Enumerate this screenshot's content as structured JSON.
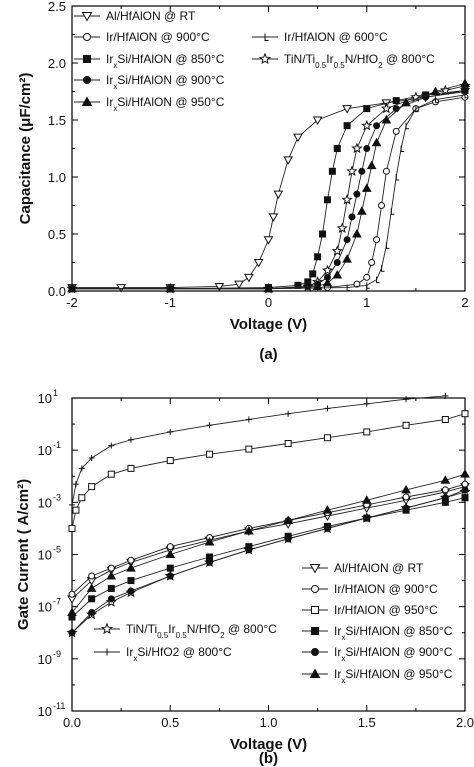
{
  "chart_data": [
    {
      "type": "line",
      "panel_label": "(a)",
      "xlabel": "Voltage (V)",
      "ylabel": "Capacitance (μF/cm²)",
      "xlim": [
        -2,
        2
      ],
      "ylim": [
        0,
        2.5
      ],
      "xticks": [
        -2,
        -1,
        0,
        1,
        2
      ],
      "yticks": [
        0.0,
        0.5,
        1.0,
        1.5,
        2.0,
        2.5
      ],
      "xtick_labels": [
        "-2",
        "-1",
        "0",
        "1",
        "2"
      ],
      "ytick_labels": [
        "0.0",
        "0.5",
        "1.0",
        "1.5",
        "2.0",
        "2.5"
      ],
      "grid": false,
      "legend_position": "top-left",
      "series": [
        {
          "name": "Al/HfAlON @ RT",
          "marker": "tri-down-open",
          "x": [
            -2.0,
            -1.5,
            -1.0,
            -0.5,
            -0.3,
            -0.2,
            -0.1,
            0.0,
            0.05,
            0.1,
            0.2,
            0.3,
            0.5,
            0.8,
            1.2,
            1.6,
            2.0
          ],
          "y": [
            0.03,
            0.03,
            0.03,
            0.04,
            0.06,
            0.12,
            0.25,
            0.45,
            0.65,
            0.85,
            1.15,
            1.35,
            1.5,
            1.6,
            1.65,
            1.7,
            1.75
          ]
        },
        {
          "name": "Ir/HfAlON @ 900°C",
          "marker": "circle-open",
          "x": [
            -2.0,
            -1.0,
            0.0,
            0.6,
            0.9,
            1.0,
            1.05,
            1.1,
            1.15,
            1.2,
            1.3,
            1.5,
            1.7,
            2.0
          ],
          "y": [
            0.02,
            0.02,
            0.02,
            0.03,
            0.06,
            0.12,
            0.25,
            0.45,
            0.75,
            1.05,
            1.4,
            1.6,
            1.66,
            1.7
          ]
        },
        {
          "name": "Ir/HfAlON @ 600°C",
          "marker": "tick-open",
          "x": [
            -2.0,
            -1.0,
            0.0,
            0.8,
            1.0,
            1.1,
            1.15,
            1.2,
            1.25,
            1.3,
            1.35,
            1.4,
            1.5,
            1.7,
            2.0
          ],
          "y": [
            0.02,
            0.02,
            0.02,
            0.03,
            0.05,
            0.1,
            0.2,
            0.4,
            0.7,
            1.0,
            1.25,
            1.45,
            1.6,
            1.68,
            1.72
          ]
        },
        {
          "name": "IrxSi/HfAlON @ 850°C",
          "marker": "square-filled",
          "x": [
            -2.0,
            -1.0,
            0.0,
            0.3,
            0.4,
            0.45,
            0.5,
            0.55,
            0.6,
            0.65,
            0.7,
            0.8,
            1.0,
            1.3,
            1.6,
            2.0
          ],
          "y": [
            0.02,
            0.02,
            0.03,
            0.05,
            0.08,
            0.15,
            0.3,
            0.5,
            0.8,
            1.05,
            1.25,
            1.45,
            1.6,
            1.67,
            1.72,
            1.76
          ]
        },
        {
          "name": "TiN/Ti0.5Ir0.5N/HfO2 @ 800°C",
          "marker": "star-open",
          "x": [
            -2.0,
            -1.0,
            0.0,
            0.4,
            0.5,
            0.6,
            0.7,
            0.75,
            0.8,
            0.85,
            0.9,
            1.0,
            1.2,
            1.5,
            1.8,
            2.0
          ],
          "y": [
            0.02,
            0.02,
            0.02,
            0.04,
            0.08,
            0.18,
            0.35,
            0.55,
            0.8,
            1.05,
            1.25,
            1.45,
            1.6,
            1.7,
            1.76,
            1.8
          ]
        },
        {
          "name": "IrxSi/HfAlON @ 900°C",
          "marker": "circle-filled",
          "x": [
            -2.0,
            -1.0,
            0.0,
            0.4,
            0.5,
            0.6,
            0.7,
            0.8,
            0.85,
            0.9,
            0.95,
            1.0,
            1.1,
            1.3,
            1.6,
            2.0
          ],
          "y": [
            0.02,
            0.02,
            0.02,
            0.04,
            0.06,
            0.12,
            0.25,
            0.45,
            0.65,
            0.85,
            1.05,
            1.25,
            1.45,
            1.6,
            1.7,
            1.76
          ]
        },
        {
          "name": "IrxSi/HfAlON @ 950°C",
          "marker": "tri-up-filled",
          "x": [
            -2.0,
            -1.0,
            0.0,
            0.5,
            0.6,
            0.7,
            0.8,
            0.9,
            0.95,
            1.0,
            1.05,
            1.1,
            1.2,
            1.4,
            1.7,
            2.0
          ],
          "y": [
            0.02,
            0.02,
            0.02,
            0.04,
            0.07,
            0.14,
            0.28,
            0.5,
            0.7,
            0.9,
            1.1,
            1.3,
            1.5,
            1.65,
            1.75,
            1.82
          ]
        }
      ]
    },
    {
      "type": "line",
      "panel_label": "(b)",
      "xlabel": "Voltage (V)",
      "ylabel": "Gate Current ( A/cm²)",
      "yscale": "log",
      "xlim": [
        0.0,
        2.0
      ],
      "ylim": [
        1e-11,
        10
      ],
      "xticks": [
        0.0,
        0.5,
        1.0,
        1.5,
        2.0
      ],
      "xtick_labels": [
        "0.0",
        "0.5",
        "1.0",
        "1.5",
        "2.0"
      ],
      "ytick_exponents": [
        1,
        -1,
        -3,
        -5,
        -7,
        -9,
        -11
      ],
      "grid": false,
      "legend_position": "bottom-right",
      "series": [
        {
          "name": "Al/HfAlON @ RT",
          "marker": "tri-down-open",
          "x": [
            0.0,
            0.1,
            0.2,
            0.3,
            0.5,
            0.7,
            0.9,
            1.1,
            1.3,
            1.5,
            1.7,
            1.9,
            2.0
          ],
          "y": [
            2e-07,
            1e-06,
            2.5e-06,
            5e-06,
            1.5e-05,
            3.5e-05,
            8e-05,
            0.00015,
            0.0003,
            0.0006,
            0.0012,
            0.0025,
            0.004
          ]
        },
        {
          "name": "Ir/HfAlON @ 900°C",
          "marker": "circle-open",
          "x": [
            0.0,
            0.1,
            0.2,
            0.3,
            0.5,
            0.7,
            0.9,
            1.1,
            1.3,
            1.5,
            1.7,
            1.9,
            2.0
          ],
          "y": [
            3e-07,
            1.5e-06,
            3e-06,
            6e-06,
            2e-05,
            4.5e-05,
            0.0001,
            0.0002,
            0.0004,
            0.0008,
            0.0016,
            0.003,
            0.005
          ]
        },
        {
          "name": "Ir/HfAlON @ 950°C",
          "marker": "square-open",
          "x": [
            0.0,
            0.02,
            0.05,
            0.1,
            0.2,
            0.3,
            0.5,
            0.7,
            0.9,
            1.1,
            1.3,
            1.5,
            1.7,
            1.9,
            2.0
          ],
          "y": [
            0.0001,
            0.0005,
            0.0015,
            0.004,
            0.012,
            0.02,
            0.04,
            0.07,
            0.11,
            0.18,
            0.3,
            0.5,
            0.9,
            1.5,
            2.5
          ]
        },
        {
          "name": "TiN/Ti0.5Ir0.5N/HfO2 @ 800°C",
          "marker": "star-open",
          "x": [
            0.0,
            0.1,
            0.2,
            0.3,
            0.5,
            0.7,
            0.9,
            1.1,
            1.3,
            1.5,
            1.7,
            1.9,
            2.0
          ],
          "y": [
            1e-08,
            5e-08,
            1.5e-07,
            3.5e-07,
            1.5e-06,
            5e-06,
            1.5e-05,
            4e-05,
            0.0001,
            0.00025,
            0.0006,
            0.0015,
            0.0025
          ]
        },
        {
          "name": "IrxSi/HfAlON @ 850°C",
          "marker": "square-filled",
          "x": [
            0.0,
            0.1,
            0.2,
            0.3,
            0.5,
            0.7,
            0.9,
            1.1,
            1.3,
            1.5,
            1.7,
            1.9,
            2.0
          ],
          "y": [
            4e-08,
            2e-07,
            5e-07,
            1e-06,
            3e-06,
            8e-06,
            2e-05,
            5e-05,
            0.00012,
            0.00025,
            0.0005,
            0.001,
            0.0015
          ]
        },
        {
          "name": "IrxSi/HfO2 @ 800°C",
          "marker": "plus",
          "x": [
            0.0,
            0.02,
            0.05,
            0.1,
            0.2,
            0.3,
            0.5,
            0.7,
            0.9,
            1.1,
            1.3,
            1.5,
            1.7,
            1.9
          ],
          "y": [
            0.0008,
            0.005,
            0.02,
            0.05,
            0.15,
            0.25,
            0.5,
            0.9,
            1.5,
            2.5,
            4,
            6,
            9,
            12
          ]
        },
        {
          "name": "IrxSi/HfAlON @ 900°C",
          "marker": "circle-filled",
          "x": [
            0.0,
            0.1,
            0.2,
            0.3,
            0.5,
            0.7,
            0.9,
            1.1,
            1.3,
            1.5,
            1.7,
            1.9,
            2.0
          ],
          "y": [
            1e-08,
            6e-08,
            2e-07,
            4e-07,
            1.5e-06,
            5e-06,
            1.5e-05,
            4e-05,
            0.0001,
            0.00025,
            0.0006,
            0.0015,
            0.003
          ]
        },
        {
          "name": "IrxSi/HfAlON @ 950°C",
          "marker": "tri-up-filled",
          "x": [
            0.0,
            0.1,
            0.2,
            0.3,
            0.5,
            0.7,
            0.9,
            1.1,
            1.3,
            1.5,
            1.7,
            1.9,
            2.0
          ],
          "y": [
            6e-08,
            5e-07,
            1.5e-06,
            3e-06,
            1e-05,
            3e-05,
            8e-05,
            0.0002,
            0.0005,
            0.0012,
            0.003,
            0.007,
            0.012
          ]
        }
      ]
    }
  ]
}
